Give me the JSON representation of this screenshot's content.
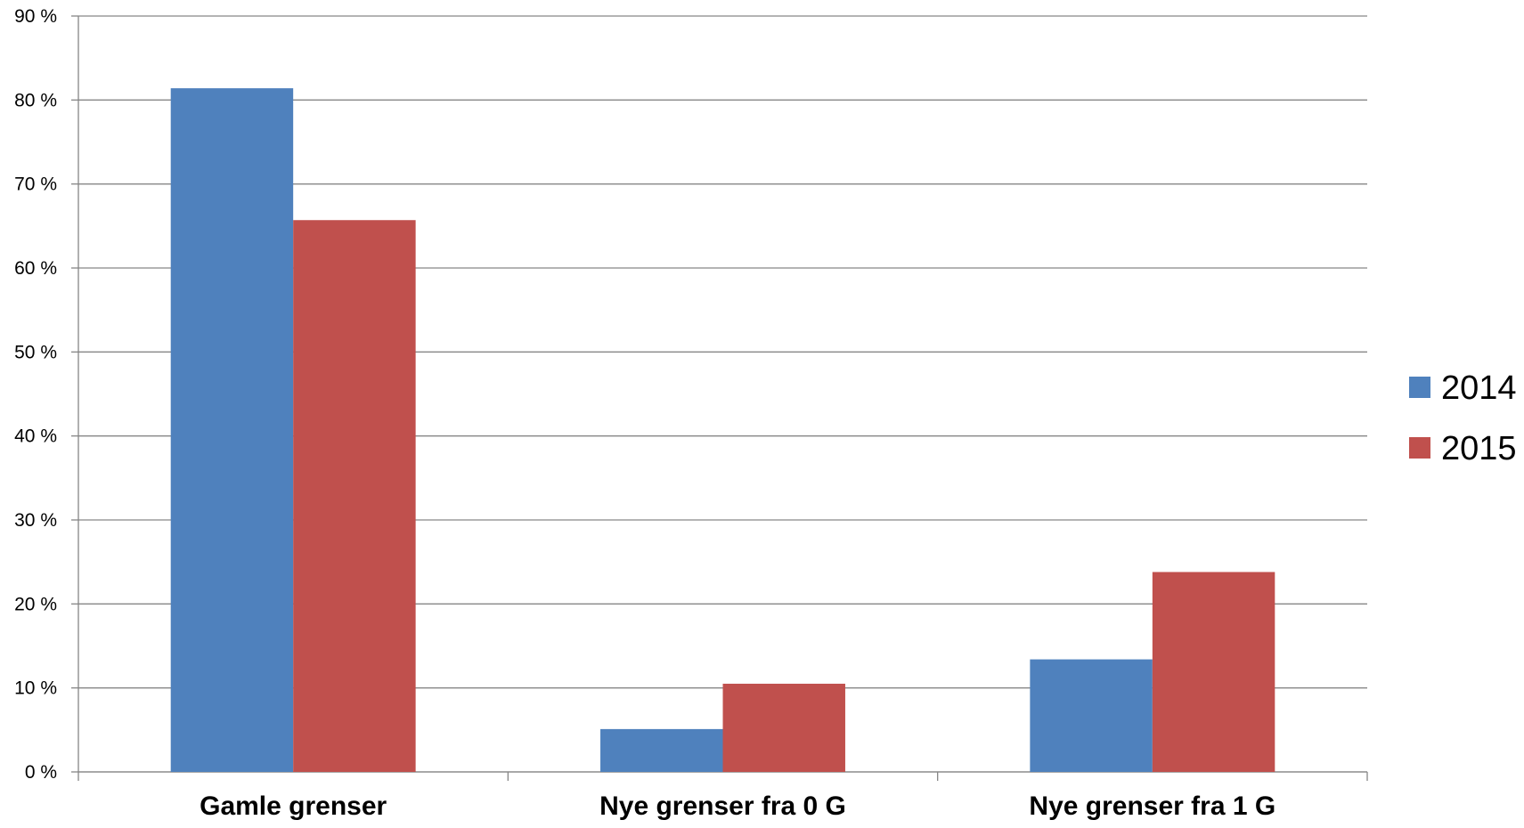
{
  "chart_data": {
    "type": "bar",
    "categories": [
      "Gamle grenser",
      "Nye grenser fra 0 G",
      "Nye grenser fra 1 G"
    ],
    "series": [
      {
        "name": "2014",
        "values": [
          81.4,
          5.1,
          13.4
        ],
        "color": "#4F81BD"
      },
      {
        "name": "2015",
        "values": [
          65.7,
          10.5,
          23.8
        ],
        "color": "#C0504D"
      }
    ],
    "ylim": [
      0,
      90
    ],
    "yticks": [
      "0 %",
      "10 %",
      "20 %",
      "30 %",
      "40 %",
      "50 %",
      "60 %",
      "70 %",
      "80 %",
      "90 %"
    ],
    "grid": true,
    "legend_position": "right"
  }
}
